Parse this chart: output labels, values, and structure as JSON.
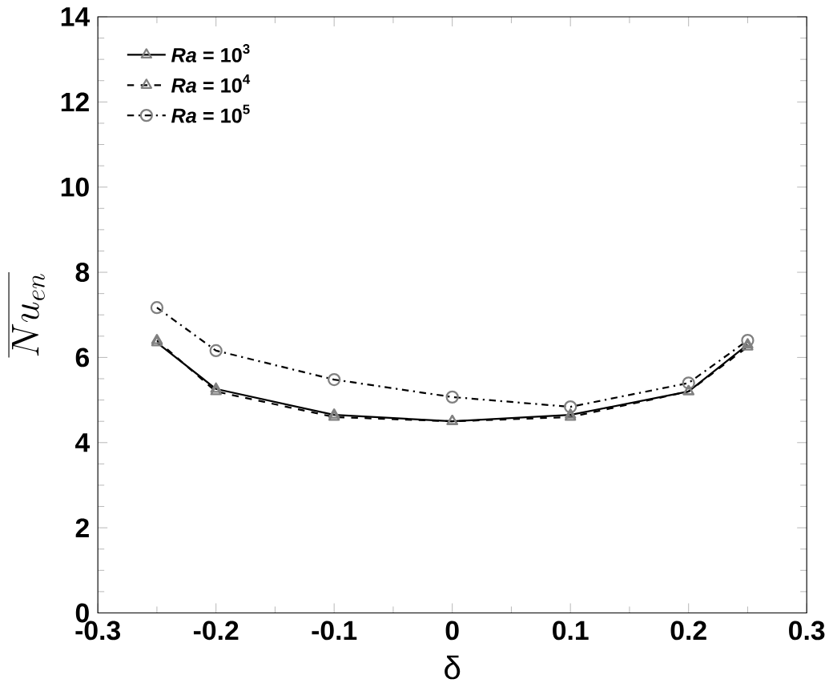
{
  "chart_data": {
    "type": "line",
    "xlabel": "δ",
    "ylabel": "\\overline{Nu_{en}}",
    "x": [
      -0.25,
      -0.2,
      -0.1,
      0,
      0.1,
      0.2,
      0.25
    ],
    "series": [
      {
        "name": "*Ra* = 10$^{3}$",
        "color": "#000000",
        "line_style": "solid",
        "marker": "triangle",
        "values": [
          6.35,
          5.26,
          4.65,
          4.5,
          4.65,
          5.2,
          6.3
        ]
      },
      {
        "name": "*Ra* = 10$^{4}$",
        "color": "#000000",
        "line_style": "dashed",
        "marker": "triangle",
        "values": [
          6.4,
          5.2,
          4.6,
          4.5,
          4.6,
          5.2,
          6.25
        ]
      },
      {
        "name": "*Ra* = 10$^{5}$",
        "color": "#000000",
        "line_style": "dashdot",
        "marker": "circle",
        "values": [
          7.17,
          6.16,
          5.48,
          5.07,
          4.84,
          5.4,
          6.4
        ]
      }
    ],
    "xlim": [
      -0.3,
      0.3
    ],
    "ylim": [
      0,
      14
    ],
    "xticks": [
      -0.3,
      -0.2,
      -0.1,
      0,
      0.1,
      0.2,
      0.3
    ],
    "yticks": [
      0,
      2,
      4,
      6,
      8,
      10,
      12,
      14
    ],
    "legend": "top left",
    "grid": false
  }
}
